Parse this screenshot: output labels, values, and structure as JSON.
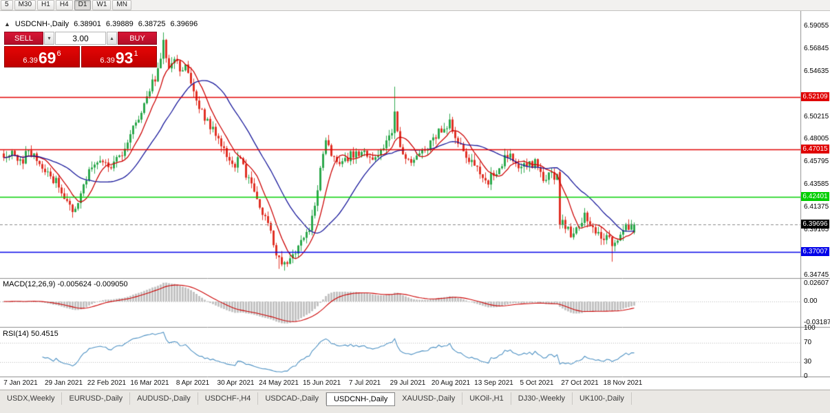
{
  "toolbar": {
    "timeframes": [
      "5",
      "M30",
      "H1",
      "H4",
      "D1",
      "W1",
      "MN"
    ],
    "active": "D1"
  },
  "chart": {
    "title": "USDCNH-,Daily",
    "open": "6.38901",
    "high": "6.39889",
    "low": "6.38725",
    "close": "6.39696",
    "collapse_arrow": "▲"
  },
  "trade_panel": {
    "sell_label": "SELL",
    "buy_label": "BUY",
    "volume": "3.00",
    "step_down_icon": "▾",
    "step_up_icon": "▴",
    "sell_price": {
      "prefix": "6.39",
      "big": "69",
      "sup": "6"
    },
    "buy_price": {
      "prefix": "6.39",
      "big": "93",
      "sup": "1"
    }
  },
  "price_axis": [
    {
      "t": "6.59055",
      "p": 6.59055
    },
    {
      "t": "6.56845",
      "p": 6.56845
    },
    {
      "t": "6.54635",
      "p": 6.54635
    },
    {
      "t": "6.50215",
      "p": 6.50215
    },
    {
      "t": "6.48005",
      "p": 6.48005
    },
    {
      "t": "6.45795",
      "p": 6.45795
    },
    {
      "t": "6.43585",
      "p": 6.43585
    },
    {
      "t": "6.41375",
      "p": 6.41375
    },
    {
      "t": "6.39165",
      "p": 6.39165
    },
    {
      "t": "6.34745",
      "p": 6.34745
    }
  ],
  "hlines": [
    {
      "t": "6.52109",
      "p": 6.52109,
      "c": "#e00000"
    },
    {
      "t": "6.47015",
      "p": 6.47015,
      "c": "#e00000"
    },
    {
      "t": "6.42401",
      "p": 6.42401,
      "c": "#00ce00"
    },
    {
      "t": "6.37007",
      "p": 6.37007,
      "c": "#0000e8"
    }
  ],
  "current_price": {
    "t": "6.39696",
    "p": 6.39696,
    "c": "#000000"
  },
  "time_axis": [
    "7 Jan 2021",
    "29 Jan 2021",
    "22 Feb 2021",
    "16 Mar 2021",
    "8 Apr 2021",
    "30 Apr 2021",
    "24 May 2021",
    "15 Jun 2021",
    "7 Jul 2021",
    "29 Jul 2021",
    "20 Aug 2021",
    "13 Sep 2021",
    "5 Oct 2021",
    "27 Oct 2021",
    "18 Nov 2021"
  ],
  "indicators": {
    "macd": {
      "label": "MACD(12,26,9) -0.005624 -0.009050",
      "axis": [
        {
          "t": "0.02607",
          "v": 0.02607
        },
        {
          "t": "0.00",
          "v": 0
        },
        {
          "t": "-0.03187",
          "v": -0.03187
        }
      ]
    },
    "rsi": {
      "label": "RSI(14) 50.4515",
      "axis": [
        {
          "t": "100",
          "v": 100
        },
        {
          "t": "70",
          "v": 70
        },
        {
          "t": "30",
          "v": 30
        },
        {
          "t": "0",
          "v": 0
        }
      ],
      "levels": [
        70,
        30
      ]
    }
  },
  "tabs": [
    {
      "label": "USDX,Weekly"
    },
    {
      "label": "EURUSD-,Daily"
    },
    {
      "label": "AUDUSD-,Daily"
    },
    {
      "label": "USDCHF-,H4"
    },
    {
      "label": "USDCAD-,Daily"
    },
    {
      "label": "USDCNH-,Daily",
      "active": true
    },
    {
      "label": "XAUUSD-,Daily"
    },
    {
      "label": "UKOil-,H1"
    },
    {
      "label": "DJ30-,Weekly"
    },
    {
      "label": "UK100-,Daily"
    }
  ],
  "chart_data": {
    "type": "candlestick",
    "symbol": "USDCNH-",
    "timeframe": "Daily",
    "candles": 230,
    "seed": 123456,
    "noise_body": 0.009,
    "noise_wick": 0.0062,
    "anchors": [
      [
        0,
        6.461
      ],
      [
        3,
        6.472
      ],
      [
        6,
        6.457
      ],
      [
        9,
        6.468
      ],
      [
        12,
        6.463
      ],
      [
        16,
        6.446
      ],
      [
        20,
        6.437
      ],
      [
        23,
        6.416
      ],
      [
        26,
        6.412
      ],
      [
        29,
        6.438
      ],
      [
        32,
        6.452
      ],
      [
        35,
        6.461
      ],
      [
        38,
        6.449
      ],
      [
        41,
        6.459
      ],
      [
        44,
        6.471
      ],
      [
        48,
        6.497
      ],
      [
        52,
        6.521
      ],
      [
        55,
        6.541
      ],
      [
        58,
        6.574
      ],
      [
        60,
        6.551
      ],
      [
        62,
        6.562
      ],
      [
        64,
        6.547
      ],
      [
        66,
        6.554
      ],
      [
        68,
        6.531
      ],
      [
        72,
        6.507
      ],
      [
        76,
        6.489
      ],
      [
        80,
        6.468
      ],
      [
        83,
        6.454
      ],
      [
        86,
        6.462
      ],
      [
        89,
        6.439
      ],
      [
        92,
        6.422
      ],
      [
        96,
        6.399
      ],
      [
        99,
        6.371
      ],
      [
        102,
        6.358
      ],
      [
        105,
        6.368
      ],
      [
        108,
        6.381
      ],
      [
        111,
        6.394
      ],
      [
        113,
        6.412
      ],
      [
        115,
        6.452
      ],
      [
        117,
        6.477
      ],
      [
        119,
        6.465
      ],
      [
        122,
        6.454
      ],
      [
        126,
        6.465
      ],
      [
        130,
        6.469
      ],
      [
        134,
        6.459
      ],
      [
        138,
        6.475
      ],
      [
        141,
        6.489
      ],
      [
        142,
        6.504
      ],
      [
        144,
        6.471
      ],
      [
        148,
        6.459
      ],
      [
        152,
        6.469
      ],
      [
        156,
        6.479
      ],
      [
        159,
        6.491
      ],
      [
        162,
        6.497
      ],
      [
        165,
        6.477
      ],
      [
        168,
        6.461
      ],
      [
        172,
        6.451
      ],
      [
        176,
        6.439
      ],
      [
        180,
        6.454
      ],
      [
        184,
        6.469
      ],
      [
        187,
        6.451
      ],
      [
        190,
        6.454
      ],
      [
        193,
        6.457
      ],
      [
        196,
        6.441
      ],
      [
        199,
        6.447
      ],
      [
        201,
        6.442
      ],
      [
        203,
        6.398
      ],
      [
        205,
        6.391
      ],
      [
        207,
        6.386
      ],
      [
        209,
        6.397
      ],
      [
        211,
        6.407
      ],
      [
        213,
        6.397
      ],
      [
        215,
        6.389
      ],
      [
        217,
        6.383
      ],
      [
        219,
        6.389
      ],
      [
        221,
        6.376
      ],
      [
        223,
        6.385
      ],
      [
        225,
        6.391
      ],
      [
        227,
        6.395
      ],
      [
        229,
        6.397
      ]
    ],
    "overrides": [
      {
        "i": 25,
        "l": 6.4035
      },
      {
        "i": 58,
        "h": 6.5845
      },
      {
        "i": 100,
        "l": 6.3535
      },
      {
        "i": 103,
        "l": 6.3555
      },
      {
        "i": 142,
        "h": 6.5315
      },
      {
        "i": 202,
        "o": 6.448,
        "h": 6.4505,
        "l": 6.3925,
        "c": 6.3965
      },
      {
        "i": 221,
        "l": 6.3605
      },
      {
        "i": 229,
        "o": 6.38901,
        "h": 6.39889,
        "l": 6.38725,
        "c": 6.39696
      }
    ],
    "ma": [
      {
        "period": 8,
        "color": "#cc0000"
      },
      {
        "period": 24,
        "color": "#16169a"
      }
    ],
    "macd": {
      "fast": 12,
      "slow": 26,
      "signal": 9
    },
    "rsi_period": 14,
    "colors": {
      "up": "#2ca84c",
      "down": "#e03024",
      "hist": "#c3c3c3",
      "hist_edge": "#9f9f9f",
      "signal": "#cc0000",
      "rsi": "#4a8fc2",
      "divider": "#8c8c8c",
      "dotted": "#b8b8b8",
      "bid_line": "#888888"
    }
  }
}
